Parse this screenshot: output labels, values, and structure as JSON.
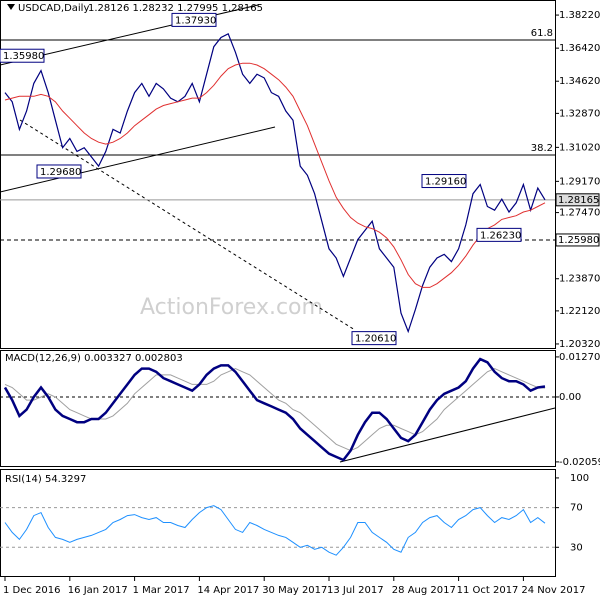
{
  "chart_data": [
    {
      "type": "line",
      "title": "USDCAD,Daily",
      "subtitle": "1.28126 1.28232 1.27995 1.28165",
      "watermark": "ActionForex.com",
      "categories": [
        "1 Dec 2016",
        null,
        null,
        null,
        null,
        null,
        null,
        null,
        null,
        "16 Jan 2017",
        null,
        null,
        null,
        null,
        null,
        null,
        null,
        null,
        "1 Mar 2017",
        null,
        null,
        null,
        null,
        null,
        null,
        null,
        null,
        "14 Apr 2017",
        null,
        null,
        null,
        null,
        null,
        null,
        null,
        null,
        "30 May 2017",
        null,
        null,
        null,
        null,
        null,
        null,
        null,
        null,
        "13 Jul 2017",
        null,
        null,
        null,
        null,
        null,
        null,
        null,
        null,
        "28 Aug 2017",
        null,
        null,
        null,
        null,
        null,
        null,
        null,
        null,
        "11 Oct 2017",
        null,
        null,
        null,
        null,
        null,
        null,
        null,
        null,
        "24 Nov 2017",
        null,
        null,
        null
      ],
      "series": [
        {
          "color": "#000080",
          "values": [
            1.34,
            1.335,
            1.32,
            1.33,
            1.345,
            1.352,
            1.34,
            1.325,
            1.31,
            1.315,
            1.308,
            1.31,
            1.305,
            1.3,
            1.308,
            1.32,
            1.318,
            1.33,
            1.34,
            1.345,
            1.338,
            1.345,
            1.342,
            1.337,
            1.335,
            1.338,
            1.345,
            1.335,
            1.35,
            1.365,
            1.37,
            1.372,
            1.362,
            1.35,
            1.345,
            1.35,
            1.348,
            1.34,
            1.338,
            1.33,
            1.325,
            1.3,
            1.295,
            1.285,
            1.27,
            1.255,
            1.25,
            1.24,
            1.25,
            1.26,
            1.265,
            1.27,
            1.255,
            1.25,
            1.245,
            1.22,
            1.21,
            1.222,
            1.235,
            1.245,
            1.25,
            1.252,
            1.248,
            1.255,
            1.268,
            1.285,
            1.29,
            1.278,
            1.276,
            1.282,
            1.275,
            1.28,
            1.29,
            1.276,
            1.288,
            1.28165
          ]
        },
        {
          "color": "#e03030",
          "values": [
            1.336,
            1.337,
            1.338,
            1.338,
            1.338,
            1.339,
            1.338,
            1.335,
            1.33,
            1.326,
            1.322,
            1.318,
            1.315,
            1.313,
            1.312,
            1.313,
            1.315,
            1.318,
            1.322,
            1.325,
            1.328,
            1.331,
            1.333,
            1.334,
            1.335,
            1.336,
            1.337,
            1.337,
            1.34,
            1.344,
            1.349,
            1.353,
            1.355,
            1.356,
            1.356,
            1.355,
            1.353,
            1.35,
            1.347,
            1.343,
            1.338,
            1.33,
            1.322,
            1.312,
            1.302,
            1.292,
            1.283,
            1.277,
            1.272,
            1.269,
            1.267,
            1.266,
            1.264,
            1.261,
            1.256,
            1.249,
            1.241,
            1.236,
            1.234,
            1.234,
            1.236,
            1.239,
            1.242,
            1.246,
            1.251,
            1.257,
            1.262,
            1.266,
            1.268,
            1.271,
            1.272,
            1.273,
            1.275,
            1.276,
            1.278,
            1.28
          ]
        }
      ],
      "ylim": [
        1.201,
        1.3904
      ],
      "yticks": [
        {
          "value": 1.3822,
          "label": "1.38220"
        },
        {
          "value": 1.3642,
          "label": "1.36420"
        },
        {
          "value": 1.3462,
          "label": "1.34620"
        },
        {
          "value": 1.3287,
          "label": "1.32870"
        },
        {
          "value": 1.3102,
          "label": "1.31020"
        },
        {
          "value": 1.2917,
          "label": "1.29170"
        },
        {
          "value": 1.2747,
          "label": "1.27470"
        },
        {
          "value": 1.2387,
          "label": "1.23870"
        },
        {
          "value": 1.2212,
          "label": "1.22120"
        },
        {
          "value": 1.2032,
          "label": "1.20320"
        }
      ],
      "annotations": [
        {
          "value": 1.3598,
          "label": "1.35980"
        },
        {
          "value": 1.3793,
          "label": "1.37930"
        },
        {
          "value": 1.2968,
          "label": "1.29680"
        },
        {
          "value": 1.2916,
          "label": "1.29160"
        },
        {
          "value": 1.2623,
          "label": "1.26230"
        },
        {
          "value": 1.2061,
          "label": "1.20610"
        }
      ],
      "levels": [
        {
          "value": 1.2598,
          "label": "1.25980"
        },
        {
          "value": 1.28165,
          "label": "1.28165"
        }
      ],
      "fib_labels": [
        "61.8",
        "38.2"
      ]
    },
    {
      "type": "macd",
      "title": "MACD(12,26,9) 0.003327 0.002803",
      "series": [
        {
          "color": "#000080",
          "values": [
            0.003,
            -0.001,
            -0.006,
            -0.004,
            0.0,
            0.003,
            0.0,
            -0.004,
            -0.006,
            -0.007,
            -0.008,
            -0.008,
            -0.007,
            -0.007,
            -0.005,
            -0.002,
            0.001,
            0.004,
            0.007,
            0.009,
            0.009,
            0.008,
            0.006,
            0.005,
            0.004,
            0.003,
            0.002,
            0.004,
            0.007,
            0.009,
            0.01,
            0.01,
            0.008,
            0.005,
            0.002,
            -0.001,
            -0.002,
            -0.003,
            -0.004,
            -0.005,
            -0.007,
            -0.01,
            -0.012,
            -0.014,
            -0.016,
            -0.018,
            -0.019,
            -0.02,
            -0.017,
            -0.012,
            -0.008,
            -0.005,
            -0.005,
            -0.007,
            -0.01,
            -0.013,
            -0.014,
            -0.012,
            -0.008,
            -0.004,
            -0.001,
            0.001,
            0.002,
            0.003,
            0.005,
            0.009,
            0.012,
            0.011,
            0.008,
            0.006,
            0.005,
            0.005,
            0.004,
            0.002,
            0.003,
            0.003327
          ]
        },
        {
          "color": "#a0a0a0",
          "values": [
            0.004,
            0.003,
            0.001,
            -0.001,
            -0.001,
            0.0,
            0.001,
            0.0,
            -0.002,
            -0.004,
            -0.005,
            -0.006,
            -0.007,
            -0.007,
            -0.007,
            -0.006,
            -0.004,
            -0.002,
            0.001,
            0.003,
            0.005,
            0.007,
            0.007,
            0.007,
            0.006,
            0.005,
            0.004,
            0.004,
            0.004,
            0.005,
            0.007,
            0.008,
            0.009,
            0.008,
            0.007,
            0.005,
            0.003,
            0.001,
            -0.001,
            -0.002,
            -0.004,
            -0.005,
            -0.007,
            -0.009,
            -0.011,
            -0.013,
            -0.015,
            -0.016,
            -0.017,
            -0.016,
            -0.014,
            -0.012,
            -0.01,
            -0.009,
            -0.009,
            -0.01,
            -0.011,
            -0.012,
            -0.011,
            -0.009,
            -0.007,
            -0.004,
            -0.002,
            0.0,
            0.002,
            0.004,
            0.006,
            0.008,
            0.009,
            0.008,
            0.007,
            0.006,
            0.005,
            0.004,
            0.003,
            0.002803
          ]
        }
      ],
      "ylim": [
        -0.0219,
        0.0149
      ],
      "yticks": [
        0.012704,
        {
          "value": 0,
          "label": "0.00"
        },
        -0.020599
      ]
    },
    {
      "type": "rsi",
      "title": "RSI(14) 54.3297",
      "series": [
        {
          "color": "#1e90ff",
          "values": [
            55,
            45,
            38,
            48,
            62,
            65,
            50,
            40,
            38,
            35,
            38,
            40,
            42,
            45,
            48,
            55,
            58,
            62,
            63,
            60,
            58,
            60,
            55,
            55,
            52,
            50,
            58,
            65,
            70,
            72,
            68,
            58,
            48,
            45,
            55,
            52,
            48,
            45,
            42,
            40,
            35,
            30,
            32,
            28,
            30,
            25,
            22,
            30,
            40,
            55,
            55,
            45,
            40,
            35,
            28,
            25,
            40,
            45,
            55,
            60,
            62,
            55,
            50,
            58,
            62,
            68,
            70,
            62,
            55,
            60,
            58,
            62,
            68,
            55,
            60,
            54.3297
          ]
        }
      ],
      "ylim": [
        0,
        108
      ],
      "yticks": [
        100,
        70,
        30
      ]
    }
  ]
}
